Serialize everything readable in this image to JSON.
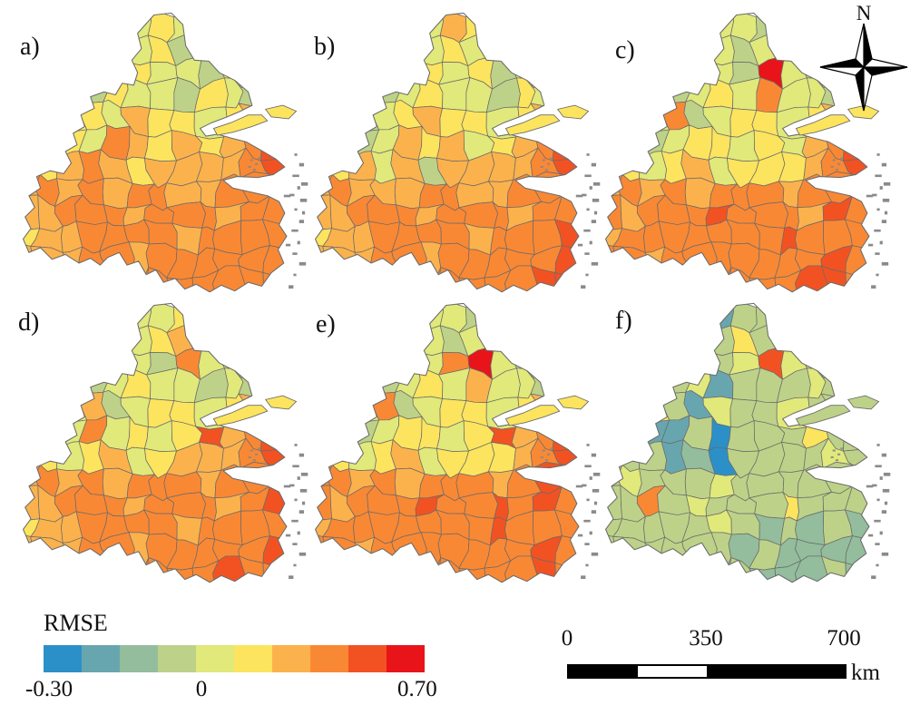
{
  "figure": {
    "palette": [
      "#2b90c8",
      "#68a6af",
      "#93bd9c",
      "#bdd288",
      "#e0e97a",
      "#fce45e",
      "#fcb24c",
      "#f98834",
      "#f25222",
      "#e81419"
    ],
    "outline_color": "#6b6b6b",
    "island_color": "#8a8a8a",
    "panels": [
      {
        "label": "a)",
        "sliver": "5",
        "rows": [
          "4444445444444",
          "4444445344444",
          "4444354435444",
          "4443544354354",
          "4445465545655",
          "5654765656788",
          "6567656666788",
          "6767677667777",
          "6677767776777",
          "5667777677777",
          "6667767777777",
          "6666777777777"
        ]
      },
      {
        "label": "b)",
        "sliver": "5",
        "rows": [
          "4444446544444",
          "4444445444444",
          "4444454534444",
          "4443454435444",
          "4434565545655",
          "5334656456788",
          "6564636666788",
          "6766677667777",
          "6677767776777",
          "5667777677787",
          "6667767777788",
          "6666777777888"
        ]
      },
      {
        "label": "c)",
        "sliver": "5",
        "rows": [
          "4444444344444",
          "4444443444444",
          "4444443943444",
          "4443454744354",
          "4447345545655",
          "4434554546788",
          "5545645556788",
          "6767677767777",
          "7677787776877",
          "6777777787777",
          "7767777777878",
          "6677777778877"
        ]
      },
      {
        "label": "d)",
        "sliver": "5",
        "rows": [
          "4444444544444",
          "4444445644444",
          "4444443743444",
          "4443454434354",
          "4446345545655",
          "4447454586788",
          "5545645666788",
          "6767677767777",
          "6677767776787",
          "5667777677777",
          "6667767777787",
          "6666777778777"
        ]
      },
      {
        "label": "e)",
        "sliver": "5",
        "rows": [
          "4444444344444",
          "4444443444444",
          "4444447943444",
          "4443454644354",
          "4447345545655",
          "4434554586788",
          "5545645556788",
          "7767677767877",
          "7677787787877",
          "6777777787777",
          "7767777777877",
          "6777777777877"
        ]
      },
      {
        "label": "f)",
        "sliver": "3",
        "rows": [
          "3333313333333",
          "3333335333333",
          "3333334843333",
          "3333413334333",
          "3353143343333",
          "3311303335333",
          "3331203333433",
          "3433343333333",
          "3373433353333",
          "3333343232322",
          "3333332322222",
          "3333323222322"
        ]
      }
    ]
  },
  "legend": {
    "title": "RMSE",
    "tick_min": "-0.30",
    "tick_zero": "0",
    "tick_max": "0.70"
  },
  "scalebar": {
    "tick_0": "0",
    "tick_mid": "350",
    "tick_max": "700",
    "unit": "km",
    "bar_color": "#000000"
  },
  "north_arrow": {
    "label": "N"
  }
}
